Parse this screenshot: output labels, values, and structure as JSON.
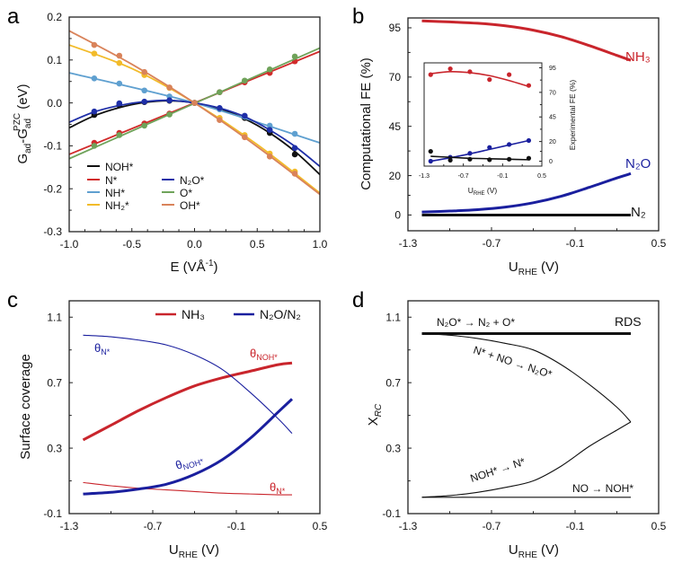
{
  "chart_data": [
    {
      "panel": "a",
      "type": "scatter",
      "xlabel": "E (VÅ⁻¹)",
      "ylabel": "G_ad-G_ad^PZC (eV)",
      "xlim": [
        -1.0,
        1.0
      ],
      "ylim": [
        -0.3,
        0.2
      ],
      "xticks": [
        "-1.0",
        "-0.5",
        "0.0",
        "0.5",
        "1.0"
      ],
      "xtick_values": [
        -1.0,
        -0.5,
        0.0,
        0.5,
        1.0
      ],
      "yticks": [
        "0.2",
        "0.1",
        "0.0",
        "-0.1",
        "-0.2",
        "-0.3"
      ],
      "ytick_values": [
        0.2,
        0.1,
        0.0,
        -0.1,
        -0.2,
        -0.3
      ],
      "legend_position": "bottom-left",
      "x": [
        -0.8,
        -0.6,
        -0.4,
        -0.2,
        0.0,
        0.2,
        0.4,
        0.6,
        0.8
      ],
      "series": [
        {
          "name": "NOH*",
          "color": "#111111",
          "values": [
            -0.028,
            -0.005,
            0.002,
            0.005,
            0.0,
            -0.013,
            -0.035,
            -0.07,
            -0.12
          ],
          "fit_x": [
            -1.0,
            -0.8,
            -0.6,
            -0.4,
            -0.2,
            0.0,
            0.2,
            0.4,
            0.6,
            0.8,
            1.0
          ],
          "fit_y": [
            -0.058,
            -0.03,
            -0.011,
            0.001,
            0.005,
            0.0,
            -0.014,
            -0.037,
            -0.07,
            -0.113,
            -0.167
          ]
        },
        {
          "name": "N*",
          "color": "#d12a2a",
          "values": [
            -0.093,
            -0.07,
            -0.048,
            -0.025,
            0.0,
            0.025,
            0.048,
            0.07,
            0.097
          ],
          "fit_x": [
            -1.0,
            1.0
          ],
          "fit_y": [
            -0.12,
            0.12
          ]
        },
        {
          "name": "NH*",
          "color": "#5fa0d0",
          "values": [
            0.057,
            0.045,
            0.029,
            0.015,
            0.0,
            -0.015,
            -0.032,
            -0.053,
            -0.072
          ],
          "fit_x": [
            -1.0,
            0.0,
            1.0
          ],
          "fit_y": [
            0.07,
            0.0,
            -0.093
          ]
        },
        {
          "name": "NH2*",
          "color": "#f2bb2a",
          "values": [
            0.115,
            0.093,
            0.065,
            0.035,
            0.0,
            -0.035,
            -0.075,
            -0.118,
            -0.16
          ],
          "fit_x": [
            -1.0,
            -0.5,
            0.0,
            0.5,
            1.0
          ],
          "fit_y": [
            0.135,
            0.08,
            0.0,
            -0.097,
            -0.21
          ]
        },
        {
          "name": "N2O*",
          "color": "#1f2fa8",
          "values": [
            -0.02,
            -0.001,
            0.003,
            0.006,
            0.0,
            -0.012,
            -0.03,
            -0.063,
            -0.105
          ],
          "fit_x": [
            -1.0,
            -0.8,
            -0.6,
            -0.4,
            -0.2,
            0.0,
            0.2,
            0.4,
            0.6,
            0.8,
            1.0
          ],
          "fit_y": [
            -0.045,
            -0.021,
            -0.006,
            0.003,
            0.006,
            0.0,
            -0.012,
            -0.032,
            -0.063,
            -0.101,
            -0.148
          ]
        },
        {
          "name": "O*",
          "color": "#6fa35a",
          "values": [
            -0.1,
            -0.075,
            -0.053,
            -0.027,
            0.0,
            0.025,
            0.052,
            0.078,
            0.108
          ],
          "fit_x": [
            -1.0,
            1.0
          ],
          "fit_y": [
            -0.13,
            0.128
          ]
        },
        {
          "name": "OH*",
          "color": "#d9835a",
          "values": [
            0.135,
            0.11,
            0.072,
            0.036,
            0.0,
            -0.04,
            -0.08,
            -0.125,
            -0.165
          ],
          "fit_x": [
            -1.0,
            -0.5,
            0.0,
            0.5,
            1.0
          ],
          "fit_y": [
            0.168,
            0.09,
            0.0,
            -0.102,
            -0.213
          ]
        }
      ]
    },
    {
      "panel": "b",
      "type": "line",
      "xlabel": "U_RHE (V)",
      "ylabel": "Computational FE (%)",
      "xlim": [
        -1.3,
        0.5
      ],
      "ylim": [
        -8,
        100
      ],
      "xticks": [
        "-1.3",
        "-0.7",
        "-0.1",
        "0.5"
      ],
      "xtick_values": [
        -1.3,
        -0.7,
        -0.1,
        0.5
      ],
      "yticks": [
        "95",
        "70",
        "45",
        "20",
        "0"
      ],
      "ytick_values": [
        95,
        70,
        45,
        20,
        0
      ],
      "x": [
        -1.2,
        -1.0,
        -0.8,
        -0.6,
        -0.4,
        -0.2,
        0.0,
        0.2,
        0.3
      ],
      "series": [
        {
          "name": "NH3",
          "label": "NH₃",
          "color": "#c9252c",
          "values": [
            98.5,
            98.0,
            97.3,
            96.0,
            93.8,
            90.5,
            86.0,
            81.0,
            78.5
          ]
        },
        {
          "name": "N2O",
          "label": "N₂O",
          "color": "#1a1f9e",
          "values": [
            1.5,
            2.0,
            2.7,
            4.0,
            6.2,
            9.5,
            14.0,
            18.8,
            21.0
          ]
        },
        {
          "name": "N2",
          "label": "N₂",
          "color": "#111111",
          "values": [
            0,
            0,
            0,
            0,
            0,
            0,
            0,
            0,
            0
          ]
        }
      ],
      "inset": {
        "type": "scatter",
        "xlabel": "U_RHE (V)",
        "ylabel": "Experimental FE (%)",
        "xlim": [
          -1.3,
          0.5
        ],
        "ylim": [
          -5,
          100
        ],
        "xticks": [
          "-1.3",
          "-0.7",
          "-0.1",
          "0.5"
        ],
        "xtick_values": [
          -1.3,
          -0.7,
          -0.1,
          0.5
        ],
        "yticks": [
          "95",
          "70",
          "45",
          "20",
          "0"
        ],
        "ytick_values": [
          95,
          70,
          45,
          20,
          0
        ],
        "x": [
          -1.2,
          -0.9,
          -0.6,
          -0.3,
          0.0,
          0.3
        ],
        "series": [
          {
            "name": "NH3",
            "color": "#c9252c",
            "values": [
              88,
              94,
              91,
              83,
              88,
              77
            ],
            "fit": [
              89,
              91,
              90,
              87,
              82,
              76
            ]
          },
          {
            "name": "N2O",
            "color": "#1a1f9e",
            "values": [
              0,
              4,
              8,
              14,
              17,
              21
            ],
            "fit": [
              0,
              3.5,
              7.5,
              12,
              16.5,
              21
            ]
          },
          {
            "name": "N2",
            "color": "#111111",
            "values": [
              10,
              1,
              2,
              1.5,
              2,
              3
            ],
            "fit": [
              5,
              4,
              3,
              2.5,
              2,
              1.5
            ]
          }
        ]
      }
    },
    {
      "panel": "c",
      "type": "line",
      "xlabel": "U_RHE (V)",
      "ylabel": "Surface coverage",
      "xlim": [
        -1.3,
        0.5
      ],
      "ylim": [
        -0.1,
        1.2
      ],
      "xticks": [
        "-1.3",
        "-0.7",
        "-0.1",
        "0.5"
      ],
      "xtick_values": [
        -1.3,
        -0.7,
        -0.1,
        0.5
      ],
      "yticks": [
        "1.1",
        "0.7",
        "0.3",
        "-0.1"
      ],
      "ytick_values": [
        1.1,
        0.7,
        0.3,
        -0.1
      ],
      "legend": [
        {
          "label": "NH₃",
          "color": "#c9252c"
        },
        {
          "label": "N₂O/N₂",
          "color": "#1a1f9e"
        }
      ],
      "legend_position": "top-right",
      "x": [
        -1.2,
        -1.0,
        -0.8,
        -0.6,
        -0.4,
        -0.2,
        0.0,
        0.2,
        0.3
      ],
      "series": [
        {
          "name": "NH3 θNOH*",
          "label": "θNOH*",
          "color": "#c9252c",
          "width": "thick",
          "values": [
            0.35,
            0.44,
            0.53,
            0.61,
            0.68,
            0.73,
            0.77,
            0.81,
            0.82
          ]
        },
        {
          "name": "NH3 θN*",
          "label": "θN*",
          "color": "#c9252c",
          "width": "thin",
          "values": [
            0.09,
            0.07,
            0.055,
            0.045,
            0.035,
            0.025,
            0.02,
            0.015,
            0.015
          ]
        },
        {
          "name": "N2O/N2 θN*",
          "label": "θN*",
          "color": "#1a1f9e",
          "width": "thin",
          "values": [
            0.99,
            0.98,
            0.96,
            0.93,
            0.87,
            0.78,
            0.64,
            0.48,
            0.39
          ]
        },
        {
          "name": "N2O/N2 θNOH*",
          "label": "θNOH*",
          "color": "#1a1f9e",
          "width": "thick",
          "values": [
            0.02,
            0.03,
            0.05,
            0.08,
            0.14,
            0.23,
            0.36,
            0.52,
            0.6
          ]
        }
      ]
    },
    {
      "panel": "d",
      "type": "line",
      "xlabel": "U_RHE (V)",
      "ylabel": "X_RC",
      "xlim": [
        -1.3,
        0.5
      ],
      "ylim": [
        -0.1,
        1.2
      ],
      "xticks": [
        "-1.3",
        "-0.7",
        "-0.1",
        "0.5"
      ],
      "xtick_values": [
        -1.3,
        -0.7,
        -0.1,
        0.5
      ],
      "yticks": [
        "1.1",
        "0.7",
        "0.3",
        "-0.1"
      ],
      "ytick_values": [
        1.1,
        0.7,
        0.3,
        -0.1
      ],
      "x": [
        -1.2,
        -1.0,
        -0.8,
        -0.6,
        -0.4,
        -0.2,
        0.0,
        0.2,
        0.3
      ],
      "series": [
        {
          "name": "N2O* → N2 + O*",
          "color": "#111111",
          "width": "thick",
          "values": [
            1.0,
            1.0,
            1.0,
            1.0,
            1.0,
            1.0,
            1.0,
            1.0,
            1.0
          ]
        },
        {
          "name": "N* + NO → N2O*",
          "color": "#111111",
          "width": "thin",
          "values": [
            1.0,
            0.99,
            0.97,
            0.94,
            0.9,
            0.81,
            0.69,
            0.55,
            0.46
          ]
        },
        {
          "name": "NOH* → N*",
          "color": "#111111",
          "width": "thin",
          "values": [
            0.0,
            0.01,
            0.03,
            0.06,
            0.1,
            0.19,
            0.31,
            0.41,
            0.46
          ]
        },
        {
          "name": "NO → NOH*",
          "color": "#111111",
          "width": "thin",
          "values": [
            0.0,
            0.0,
            0.0,
            0.0,
            0.0,
            0.0,
            0.0,
            0.0,
            0.0
          ]
        }
      ],
      "annotations": [
        "N₂O* → N₂ + O*",
        "RDS",
        "N* + NO → N₂O*",
        "NOH* → N*",
        "NO → NOH*"
      ]
    }
  ],
  "panels": {
    "a": {
      "letter": "a",
      "xlabel": "E (VÅ",
      "xlabel_sup": "-1",
      "xlabel_end": ")",
      "ylabel_main": "G",
      "ylabel_sub1": "ad",
      "ylabel_mid": "-G",
      "ylabel_sub2": "ad",
      "ylabel_sup": "PZC",
      "ylabel_end": " (eV)",
      "legend": [
        {
          "label": "NOH*",
          "color": "#111111"
        },
        {
          "label": "N*",
          "color": "#d12a2a"
        },
        {
          "label": "NH*",
          "color": "#5fa0d0"
        },
        {
          "label": "NH₂*",
          "color": "#f2bb2a"
        },
        {
          "label": "N₂O*",
          "color": "#1f2fa8"
        },
        {
          "label": "O*",
          "color": "#6fa35a"
        },
        {
          "label": "OH*",
          "color": "#d9835a"
        }
      ]
    },
    "b": {
      "letter": "b",
      "xlabel_main": "U",
      "xlabel_sub": "RHE",
      "xlabel_end": " (V)",
      "ylabel": "Computational FE (%)",
      "label_nh3": "NH₃",
      "label_n2o": "N₂O",
      "label_n2": "N₂",
      "inset_xlabel_main": "U",
      "inset_xlabel_sub": "RHE",
      "inset_xlabel_end": " (V)",
      "inset_ylabel": "Experimental FE (%)"
    },
    "c": {
      "letter": "c",
      "xlabel_main": "U",
      "xlabel_sub": "RHE",
      "xlabel_end": " (V)",
      "ylabel": "Surface coverage",
      "legend_nh3": "NH₃",
      "legend_n2o": "N₂O/N₂",
      "theta": "θ",
      "sub_n": "N*",
      "sub_noh": "NOH*"
    },
    "d": {
      "letter": "d",
      "xlabel_main": "U",
      "xlabel_sub": "RHE",
      "xlabel_end": " (V)",
      "ylabel_main": "X",
      "ylabel_sub": "RC",
      "ann_rds": "RDS",
      "ann_n2o_diss": "N₂O* → N₂ + O*",
      "ann_n_no": "N* + NO → N₂O*",
      "ann_noh_n": "NOH* → N*",
      "ann_no_noh": "NO → NOH*"
    }
  }
}
